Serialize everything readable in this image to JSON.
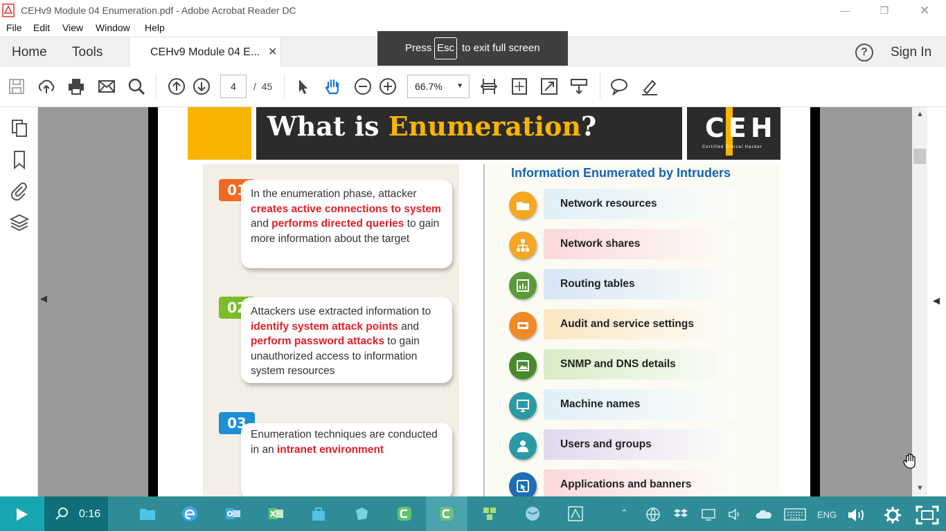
{
  "window": {
    "title": "CEHv9 Module 04 Enumeration.pdf - Adobe Acrobat Reader DC"
  },
  "menu": [
    "File",
    "Edit",
    "View",
    "Window",
    "Help"
  ],
  "tabs": {
    "home": "Home",
    "tools": "Tools",
    "document": "CEHv9 Module 04 E...",
    "help_icon": "?",
    "sign_in": "Sign In"
  },
  "fullscreen_banner": {
    "press": "Press",
    "key": "Esc",
    "rest": "to exit full screen"
  },
  "toolbar": {
    "page_current": "4",
    "page_separator": "/",
    "page_total": "45",
    "zoom": "66.7%"
  },
  "slide": {
    "title_white": "What is ",
    "title_yellow": "Enumeration",
    "title_end": "?",
    "logo": "CEH",
    "logo_sub": "Certified Ethical Hacker",
    "steps": [
      {
        "num": "01",
        "parts": [
          "In the enumeration phase, attacker ",
          "creates active connections to system",
          " and ",
          "performs directed queries",
          " to gain more information about the target"
        ]
      },
      {
        "num": "02",
        "parts": [
          "Attackers use extracted information to ",
          "identify system attack points",
          " and ",
          "perform password attacks",
          " to gain unauthorized access to information system resources"
        ]
      },
      {
        "num": "03",
        "parts": [
          "Enumeration techniques are conducted in an ",
          "intranet environment"
        ]
      }
    ],
    "right_heading": "Information Enumerated by Intruders",
    "items": [
      {
        "label": "Network resources",
        "icon": "folder-icon",
        "color": "#f5a623",
        "bg": "#dff0f7"
      },
      {
        "label": "Network shares",
        "icon": "network-icon",
        "color": "#f5a623",
        "bg": "#fbd9d9"
      },
      {
        "label": "Routing tables",
        "icon": "table-icon",
        "color": "#5a9a3a",
        "bg": "#d6e6f6"
      },
      {
        "label": "Audit and service settings",
        "icon": "settings-icon",
        "color": "#f08a24",
        "bg": "#fbe7c4"
      },
      {
        "label": "SNMP and DNS details",
        "icon": "image-icon",
        "color": "#4a8a2f",
        "bg": "#d9ecc7"
      },
      {
        "label": "Machine names",
        "icon": "monitor-icon",
        "color": "#2a9aa5",
        "bg": "#dff0f7"
      },
      {
        "label": "Users and groups",
        "icon": "users-icon",
        "color": "#2a9aa5",
        "bg": "#e2d8ef"
      },
      {
        "label": "Applications and banners",
        "icon": "app-icon",
        "color": "#1f6db5",
        "bg": "#fbd9d9"
      }
    ]
  },
  "player": {
    "time": "0:16",
    "tray_lang": "ENG"
  }
}
